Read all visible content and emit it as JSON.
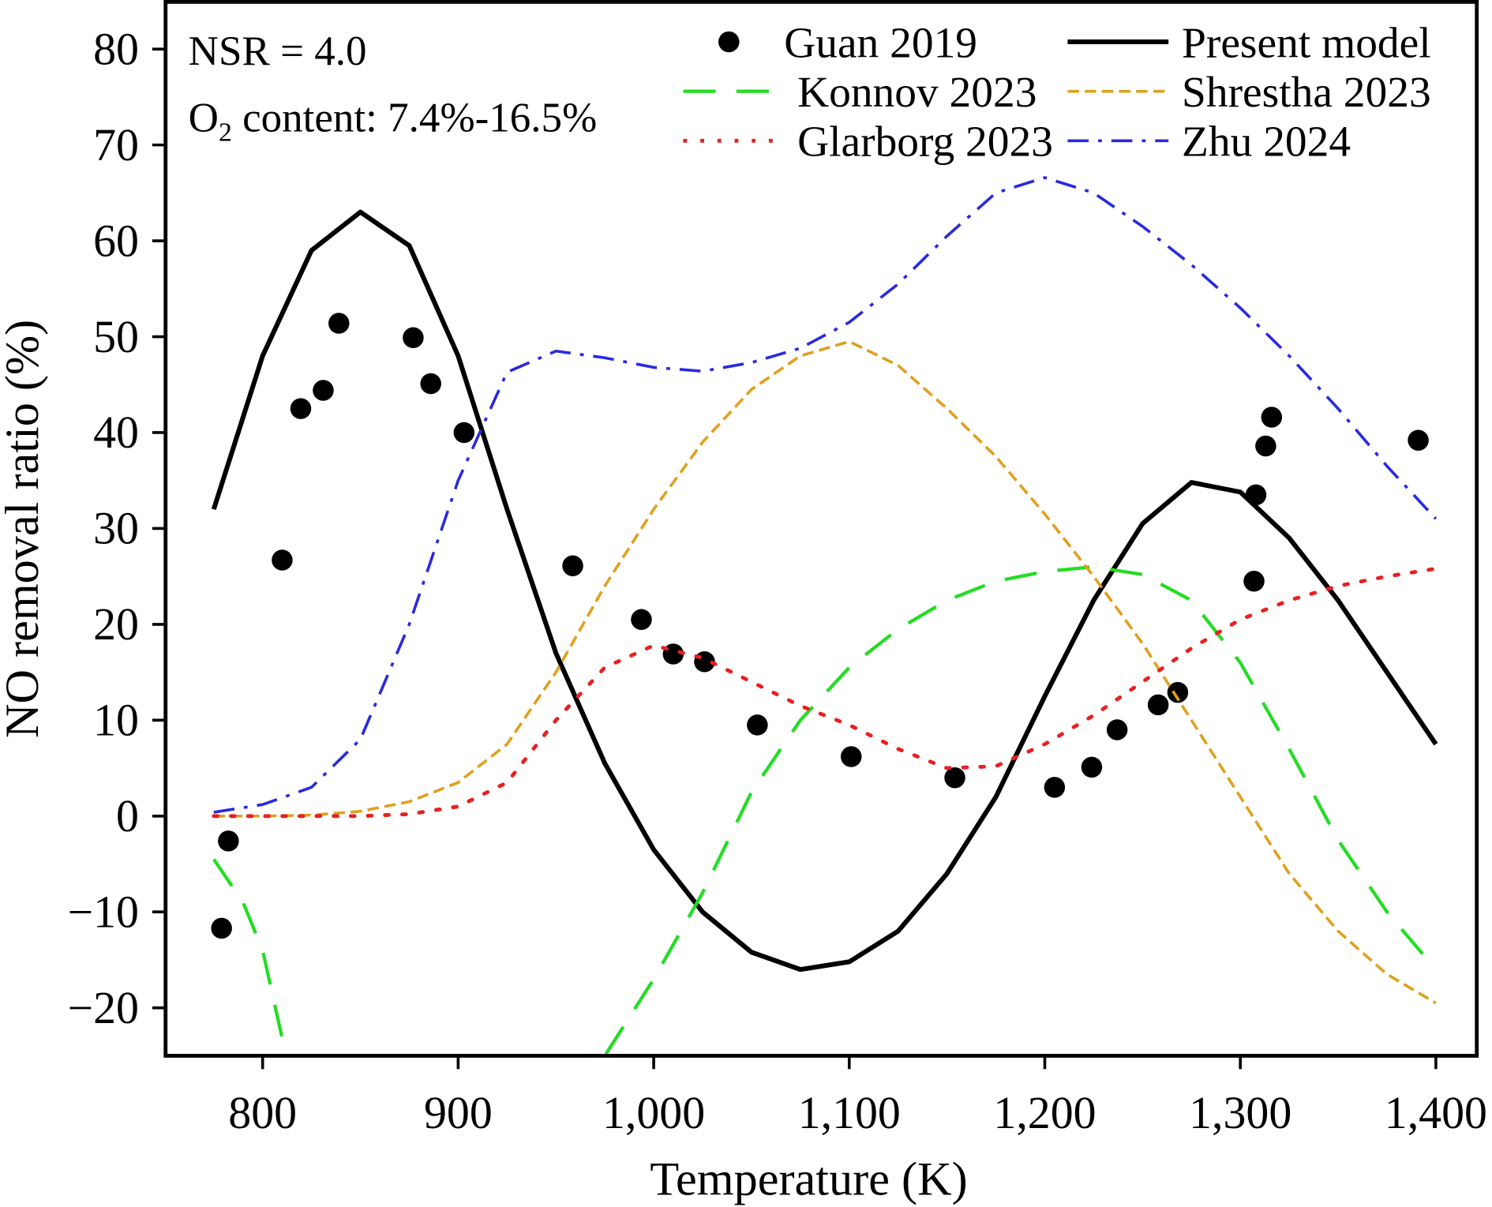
{
  "chart_data": {
    "type": "line",
    "xlabel": "Temperature (K)",
    "ylabel": "NO removal ratio (%)",
    "xlim": [
      750,
      1410
    ],
    "ylim": [
      -25,
      85
    ],
    "xticks": [
      800,
      900,
      1000,
      1100,
      1200,
      1300,
      1400
    ],
    "xtick_labels": [
      "800",
      "900",
      "1,000",
      "1,100",
      "1,200",
      "1,300",
      "1,400"
    ],
    "yticks": [
      -20,
      -10,
      0,
      10,
      20,
      30,
      40,
      50,
      60,
      70,
      80
    ],
    "ytick_labels": [
      "−20",
      "−10",
      "0",
      "10",
      "20",
      "30",
      "40",
      "50",
      "60",
      "70",
      "80"
    ],
    "grid": false,
    "legend_position": "top-right",
    "annotations": {
      "nsr": "NSR = 4.0",
      "o2_prefix": "O",
      "o2_sub": "2",
      "o2_suffix": " content: 7.4%-16.5%"
    },
    "series": [
      {
        "name": "Guan 2019",
        "style": "scatter",
        "color": "#000000",
        "x": [
          779,
          782.5,
          810,
          819.5,
          831,
          839,
          877,
          886,
          903,
          958.6,
          993.7,
          1010,
          1026,
          1053,
          1101,
          1154,
          1205,
          1224,
          1237,
          1258,
          1268,
          1307,
          1308,
          1313,
          1316,
          1391
        ],
        "y": [
          -11.7,
          -2.6,
          26.7,
          42.5,
          44.4,
          51.4,
          49.9,
          45.1,
          40,
          26.1,
          20.5,
          16.9,
          16.1,
          9.5,
          6.2,
          4,
          3,
          5.1,
          9,
          11.6,
          12.9,
          24.5,
          33.5,
          38.6,
          41.6,
          39.2
        ]
      },
      {
        "name": "Present model",
        "style": "solid",
        "color": "#000000",
        "x": [
          775,
          800,
          825,
          850,
          875,
          900,
          925,
          950,
          975,
          1000,
          1025,
          1050,
          1075,
          1100,
          1125,
          1150,
          1175,
          1200,
          1225,
          1250,
          1275,
          1300,
          1325,
          1350,
          1375,
          1400
        ],
        "y": [
          32,
          48,
          59,
          63,
          59.5,
          48,
          32,
          17,
          5.5,
          -3.5,
          -10,
          -14.2,
          -16,
          -15.2,
          -12,
          -6,
          2,
          12.5,
          22.5,
          30.5,
          34.8,
          33.8,
          29,
          22.5,
          15,
          7.5
        ]
      },
      {
        "name": "Konnov 2023",
        "style": "dashed",
        "color": "#22dd22",
        "x": [
          775,
          790,
          800,
          812,
          975,
          1000,
          1025,
          1050,
          1075,
          1100,
          1125,
          1150,
          1175,
          1200,
          1225,
          1250,
          1275,
          1300,
          1325,
          1350,
          1375,
          1400
        ],
        "y": [
          -4.5,
          -9,
          -14,
          -25,
          -25,
          -17,
          -8,
          2.5,
          10,
          15.5,
          19.5,
          22.5,
          24.5,
          25.5,
          26,
          25.2,
          22.5,
          16,
          7,
          -2.5,
          -10,
          -16
        ]
      },
      {
        "name": "Shrestha 2023",
        "style": "short-dashed",
        "color": "#e0a020",
        "x": [
          775,
          800,
          825,
          850,
          875,
          900,
          925,
          950,
          975,
          1000,
          1025,
          1050,
          1075,
          1100,
          1125,
          1150,
          1175,
          1200,
          1225,
          1250,
          1275,
          1300,
          1325,
          1350,
          1375,
          1400
        ],
        "y": [
          0,
          0,
          0.1,
          0.5,
          1.5,
          3.5,
          7.5,
          15,
          24,
          32,
          39,
          44.5,
          48,
          49.5,
          47,
          42.5,
          37.5,
          31.5,
          25,
          18,
          10,
          2,
          -6,
          -12,
          -16.5,
          -19.5
        ]
      },
      {
        "name": "Glarborg 2023",
        "style": "dotted",
        "color": "#e82020",
        "x": [
          775,
          800,
          825,
          850,
          875,
          900,
          925,
          950,
          975,
          1000,
          1025,
          1050,
          1075,
          1100,
          1125,
          1150,
          1175,
          1200,
          1225,
          1250,
          1275,
          1300,
          1325,
          1350,
          1375,
          1400
        ],
        "y": [
          0,
          0,
          0,
          0,
          0.2,
          1,
          3.5,
          10,
          15.5,
          17.8,
          16.5,
          14,
          11.5,
          9.5,
          7,
          5,
          5.2,
          7.5,
          10.5,
          14,
          17.5,
          20.5,
          22.5,
          24,
          25,
          25.8
        ]
      },
      {
        "name": "Zhu 2024",
        "style": "dash-dot",
        "color": "#2a2ae0",
        "x": [
          775,
          800,
          825,
          850,
          875,
          900,
          925,
          950,
          975,
          1000,
          1025,
          1050,
          1075,
          1100,
          1125,
          1150,
          1175,
          1200,
          1225,
          1250,
          1275,
          1300,
          1325,
          1350,
          1375,
          1400
        ],
        "y": [
          0.4,
          1.2,
          3,
          8,
          20,
          35,
          46.3,
          48.5,
          47.8,
          46.8,
          46.4,
          47.3,
          48.8,
          51.5,
          55.5,
          60.5,
          65,
          66.6,
          65,
          61.5,
          57.5,
          53,
          48,
          42.5,
          36.5,
          31
        ]
      }
    ]
  }
}
